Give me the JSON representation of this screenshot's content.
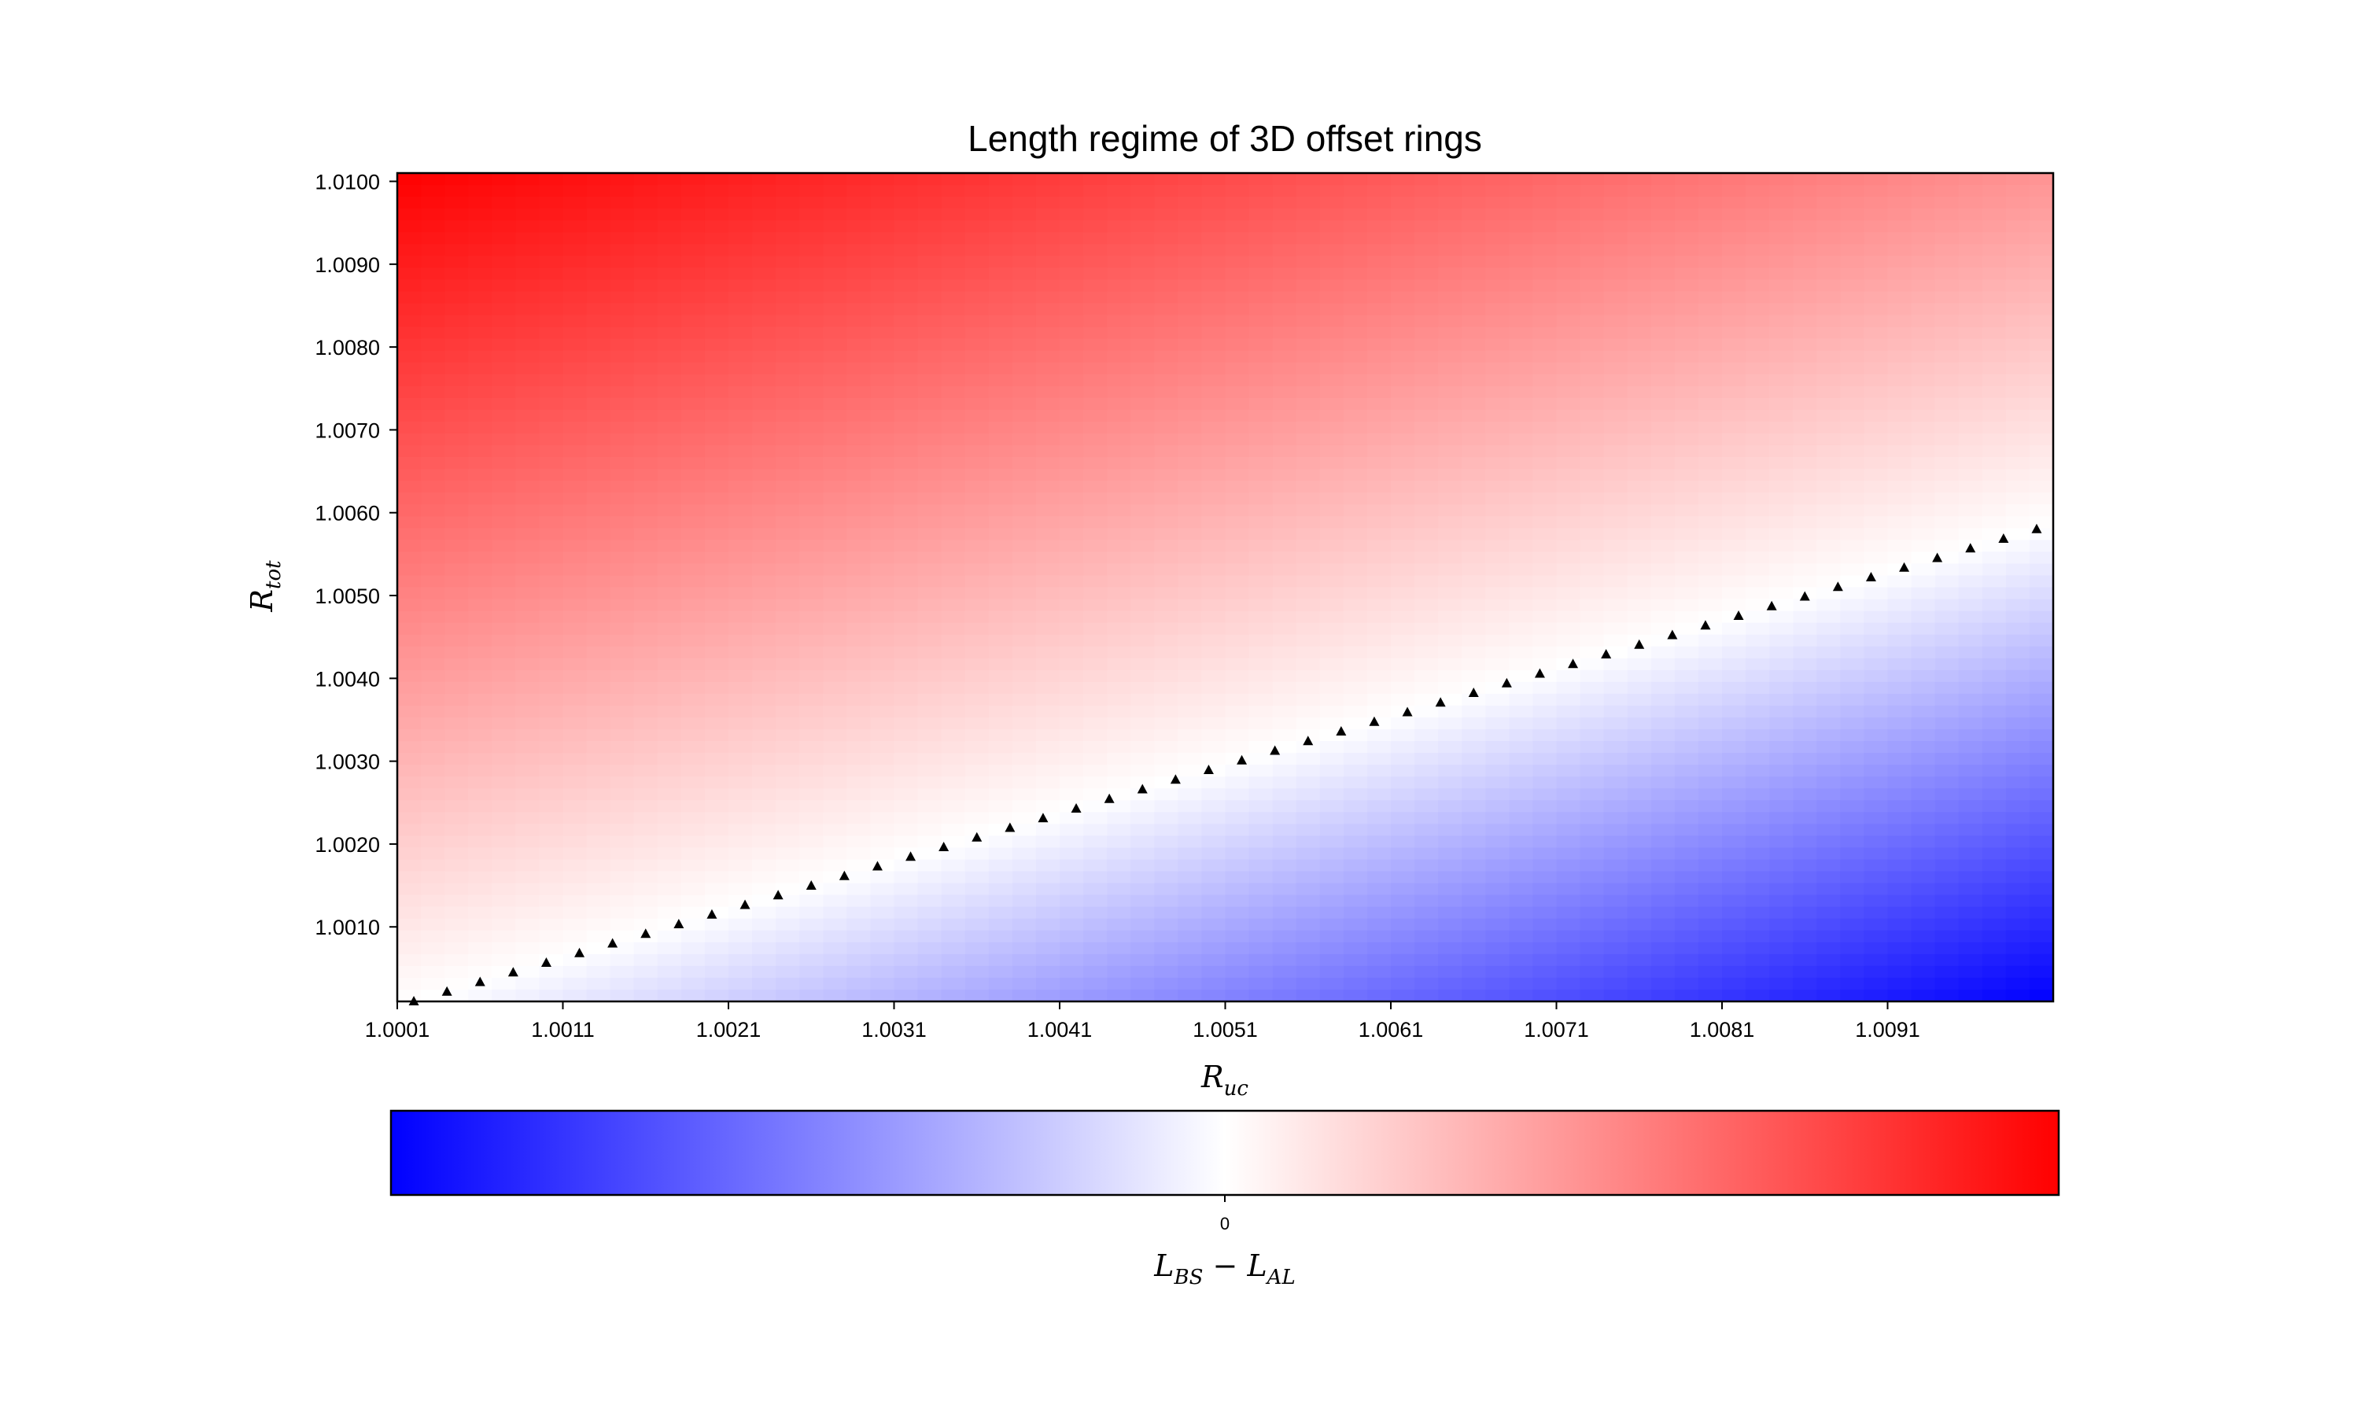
{
  "chart_data": {
    "type": "heatmap",
    "title": "Length regime of 3D offset rings",
    "xlabel": {
      "base": "R",
      "sub": "uc"
    },
    "ylabel": {
      "base": "R",
      "sub": "tot"
    },
    "xlim": [
      1.0001,
      1.0101
    ],
    "ylim": [
      1.0001,
      1.0101
    ],
    "x_ticks": [
      "1.0001",
      "1.0011",
      "1.0021",
      "1.0031",
      "1.0041",
      "1.0051",
      "1.0061",
      "1.0071",
      "1.0081",
      "1.0091"
    ],
    "x_tick_values": [
      1.0001,
      1.0011,
      1.0021,
      1.0031,
      1.0041,
      1.0051,
      1.0061,
      1.0071,
      1.0081,
      1.0091
    ],
    "y_ticks": [
      "1.0010",
      "1.0020",
      "1.0030",
      "1.0040",
      "1.0050",
      "1.0060",
      "1.0070",
      "1.0080",
      "1.0090",
      "1.0100"
    ],
    "y_tick_values": [
      1.001,
      1.002,
      1.003,
      1.004,
      1.005,
      1.006,
      1.007,
      1.008,
      1.009,
      1.01
    ],
    "boundary_points": {
      "marker": "triangle",
      "color": "#000000",
      "x_start": 1.0002,
      "x_end": 1.01,
      "x_step": 0.0002,
      "y_start": 1.0001,
      "y_end": 1.0058
    },
    "colorbar": {
      "orientation": "horizontal",
      "colormap": "bwr",
      "low_color": "#0000ff",
      "mid_color": "#ffffff",
      "high_color": "#ff0000",
      "tick_labels": [
        "0"
      ],
      "label": {
        "p1": "L",
        "s1": "BS",
        "op": " − ",
        "p2": "L",
        "s2": "AL"
      }
    }
  }
}
